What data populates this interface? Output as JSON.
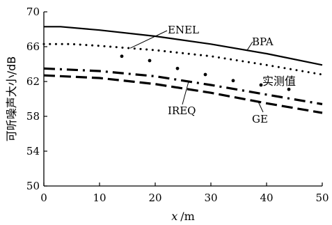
{
  "chart_data": {
    "type": "line",
    "title": "",
    "xlabel_var": "x",
    "xlabel_unit": "/m",
    "ylabel": "可听噪声大小/dB",
    "xlim": [
      0,
      50
    ],
    "ylim": [
      50,
      70
    ],
    "x_ticks": [
      "0",
      "10",
      "20",
      "30",
      "40",
      "50"
    ],
    "y_ticks": [
      "50",
      "54",
      "58",
      "62",
      "66",
      "70"
    ],
    "grid": false,
    "series": [
      {
        "name": "BPA",
        "style": "solid",
        "x": [
          0,
          3,
          10,
          20,
          30,
          40,
          50
        ],
        "y": [
          68.3,
          68.3,
          67.9,
          67.2,
          66.3,
          65.2,
          63.9
        ]
      },
      {
        "name": "ENEL",
        "style": "dotted",
        "x": [
          0,
          5,
          10,
          20,
          30,
          40,
          50
        ],
        "y": [
          66.3,
          66.3,
          66.1,
          65.6,
          64.9,
          63.9,
          62.8
        ]
      },
      {
        "name": "IREQ",
        "style": "dashdot",
        "x": [
          0,
          10,
          20,
          30,
          40,
          50
        ],
        "y": [
          63.5,
          63.2,
          62.6,
          61.6,
          60.5,
          59.4
        ]
      },
      {
        "name": "GE",
        "style": "dashed",
        "x": [
          0,
          10,
          20,
          30,
          40,
          50
        ],
        "y": [
          62.7,
          62.4,
          61.7,
          60.7,
          59.5,
          58.4
        ]
      }
    ],
    "measured": {
      "name": "实测值",
      "x": [
        14,
        19,
        24,
        29,
        34,
        39,
        44
      ],
      "y": [
        64.9,
        64.4,
        63.5,
        62.8,
        62.1,
        61.6,
        61.1
      ]
    },
    "annotations": [
      {
        "text": "ENEL"
      },
      {
        "text": "BPA"
      },
      {
        "text": "实测值"
      },
      {
        "text": "IREQ"
      },
      {
        "text": "GE"
      }
    ]
  }
}
